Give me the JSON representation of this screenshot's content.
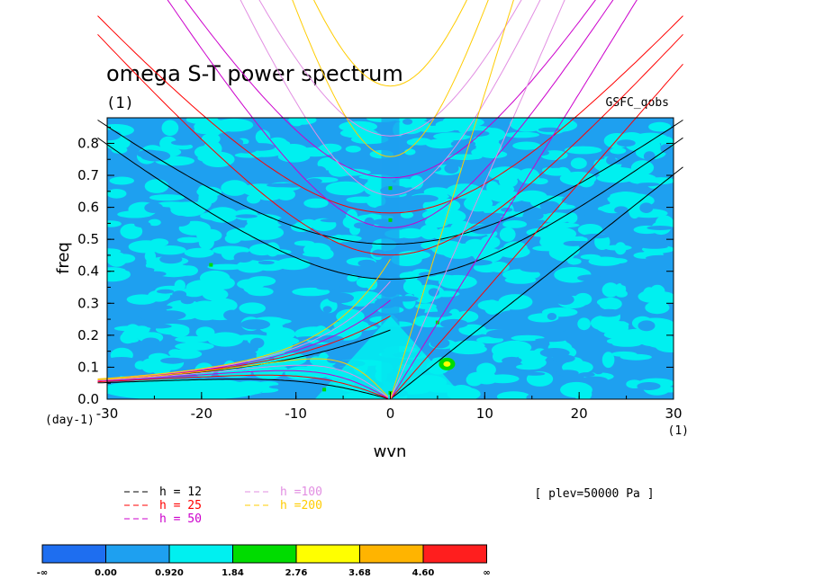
{
  "chart_data": {
    "type": "heatmap",
    "title": "omega S-T power spectrum",
    "title_unit": "(1)",
    "source_label": "GSFC_qobs",
    "xlabel": "wvn",
    "ylabel": "freq",
    "x_unit": "(1)",
    "y_unit": "(day-1)",
    "xlim": [
      -30,
      30
    ],
    "ylim": [
      0,
      0.88
    ],
    "x_ticks": [
      -30,
      -20,
      -10,
      0,
      10,
      20,
      30
    ],
    "y_ticks": [
      0.0,
      0.1,
      0.2,
      0.3,
      0.4,
      0.5,
      0.6,
      0.7,
      0.8
    ],
    "x_tick_labels": [
      "-30",
      "-20",
      "-10",
      "0",
      "10",
      "20",
      "30"
    ],
    "y_tick_labels": [
      "0.0",
      "0.1",
      "0.2",
      "0.3",
      "0.4",
      "0.5",
      "0.6",
      "0.7",
      "0.8"
    ],
    "annotation": "[ plev=50000 Pa ]",
    "grid": false,
    "dispersion_curves": [
      {
        "label": "h = 12",
        "h": 12,
        "color": "#000000"
      },
      {
        "label": "h = 25",
        "h": 25,
        "color": "#ff0000"
      },
      {
        "label": "h = 50",
        "h": 50,
        "color": "#cc00cc"
      },
      {
        "label": "h =100",
        "h": 100,
        "color": "#e28ee2"
      },
      {
        "label": "h =200",
        "h": 200,
        "color": "#ffcc00"
      }
    ],
    "colorbar": {
      "levels": [
        "-∞",
        "0.00",
        "0.920",
        "1.84",
        "2.76",
        "3.68",
        "4.60",
        "∞"
      ],
      "colors": [
        "#1e6ef0",
        "#1ea0f0",
        "#00f0f0",
        "#00dc00",
        "#ffff00",
        "#ffb400",
        "#ff1e1e"
      ]
    }
  }
}
